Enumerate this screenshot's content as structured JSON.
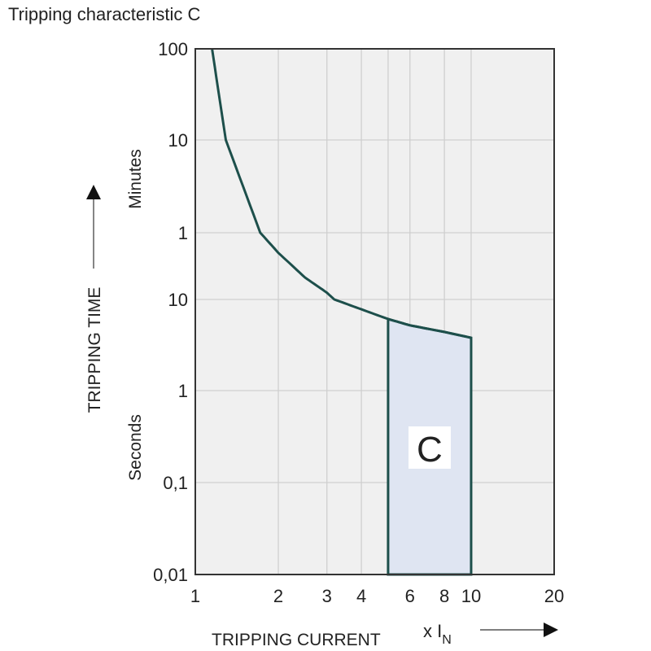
{
  "chart_data": {
    "type": "line",
    "title": "Tripping characteristic C",
    "xlabel": "TRIPPING CURRENT",
    "xunit_prefix": "x I",
    "xunit_sub": "N",
    "ylabel": "TRIPPING TIME",
    "y_group_labels": {
      "minutes": "Minutes",
      "seconds": "Seconds"
    },
    "x_scale": "log",
    "y_scale": "log",
    "xlim": [
      1,
      20
    ],
    "x_ticks": [
      {
        "value": 1,
        "label": "1"
      },
      {
        "value": 2,
        "label": "2"
      },
      {
        "value": 3,
        "label": "3"
      },
      {
        "value": 4,
        "label": "4"
      },
      {
        "value": 6,
        "label": "6"
      },
      {
        "value": 8,
        "label": "8"
      },
      {
        "value": 10,
        "label": "10"
      },
      {
        "value": 20,
        "label": "20"
      }
    ],
    "x_gridlines": [
      2,
      3,
      4,
      5,
      6,
      8,
      10
    ],
    "y_ticks": [
      {
        "seconds": 6000,
        "label": "100",
        "unit": "min"
      },
      {
        "seconds": 600,
        "label": "10",
        "unit": "min"
      },
      {
        "seconds": 60,
        "label": "1",
        "unit": "min"
      },
      {
        "seconds": 10,
        "label": "10",
        "unit": "s"
      },
      {
        "seconds": 1,
        "label": "1",
        "unit": "s"
      },
      {
        "seconds": 0.1,
        "label": "0,1",
        "unit": "s"
      },
      {
        "seconds": 0.01,
        "label": "0,01",
        "unit": "s"
      }
    ],
    "grid": true,
    "series": [
      {
        "x": [
          1.15,
          1.29,
          1.72,
          2,
          2.5,
          3,
          3.19,
          4,
          5,
          6,
          8,
          10
        ],
        "y_seconds": [
          6000,
          600,
          60,
          35,
          18,
          12,
          10,
          7.8,
          6.1,
          5.2,
          4.4,
          3.8
        ]
      }
    ],
    "region": {
      "label": "C",
      "x_from": 5,
      "x_to": 10,
      "y_bottom_seconds": 0.01
    },
    "colors": {
      "curve": "#1d4f4b",
      "region_fill": "#dfe5f2",
      "plot_bg": "#f0f0f0",
      "grid": "#cfcfcf",
      "axis": "#333333"
    }
  }
}
